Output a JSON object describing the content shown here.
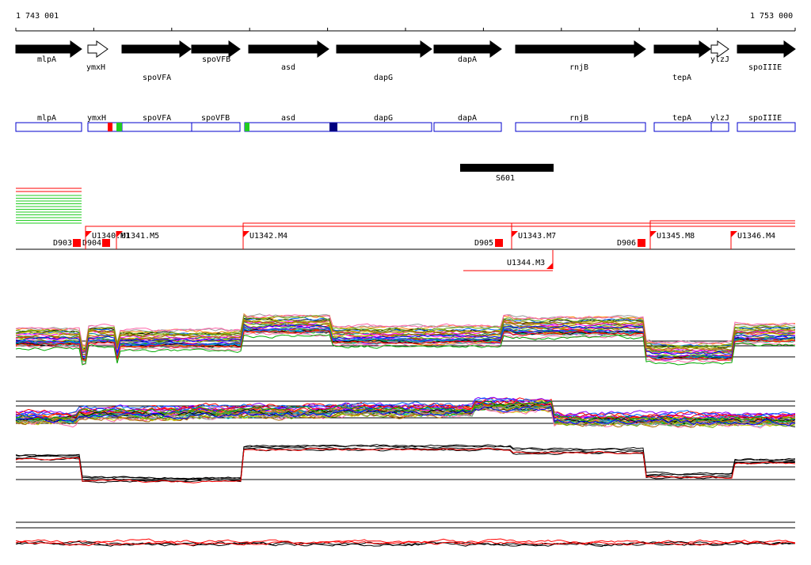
{
  "coordinates": {
    "start": "1 743 001",
    "end": "1 753 000"
  },
  "genes": [
    {
      "name": "mlpA",
      "strand": "+",
      "hollow": false
    },
    {
      "name": "ymxH",
      "strand": "+",
      "hollow": true
    },
    {
      "name": "spoVFA",
      "strand": "+",
      "hollow": false
    },
    {
      "name": "spoVFB",
      "strand": "+",
      "hollow": false
    },
    {
      "name": "asd",
      "strand": "+",
      "hollow": false
    },
    {
      "name": "dapG",
      "strand": "+",
      "hollow": false
    },
    {
      "name": "dapA",
      "strand": "+",
      "hollow": false
    },
    {
      "name": "rnjB",
      "strand": "+",
      "hollow": false
    },
    {
      "name": "tepA",
      "strand": "+",
      "hollow": false
    },
    {
      "name": "ylzJ",
      "strand": "+",
      "hollow": true
    },
    {
      "name": "spoIIIE",
      "strand": "+",
      "hollow": false
    }
  ],
  "annotation_labels": [
    "mlpA",
    "ymxH",
    "spoVFA",
    "spoVFB",
    "asd",
    "dapG",
    "dapA",
    "rnjB",
    "tepA",
    "ylzJ",
    "spoIIIE"
  ],
  "segment": {
    "label": "S601"
  },
  "downstream_markers": [
    {
      "label": "D903"
    },
    {
      "label": "D904"
    },
    {
      "label": "D905"
    },
    {
      "label": "D906"
    }
  ],
  "upstream_markers": [
    {
      "label": "U1340.M1"
    },
    {
      "label": "U1341.M5"
    },
    {
      "label": "U1342.M4"
    },
    {
      "label": "U1343.M7"
    },
    {
      "label": "U1345.M8"
    },
    {
      "label": "U1346.M4"
    },
    {
      "label": "U1344.M3"
    }
  ],
  "colors": {
    "gene_fill": "#000000",
    "annotation_box": "#0000cc",
    "marker_red": "#ff0000",
    "conserved_green": "#22cc22",
    "domain_blue": "#000080"
  }
}
